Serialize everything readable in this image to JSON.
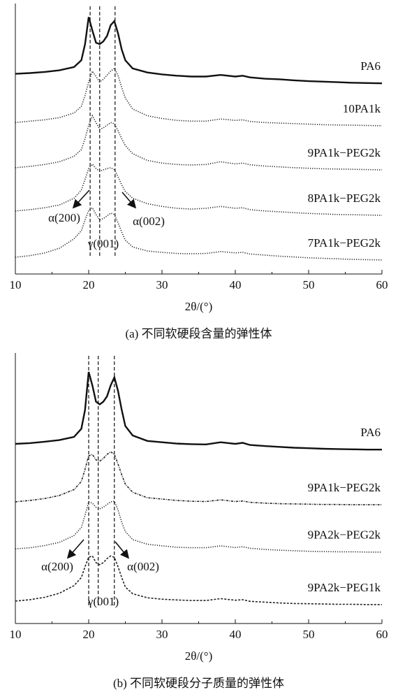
{
  "chart_data": [
    {
      "type": "line",
      "xlabel": "2θ/(°)",
      "caption": "(a)  不同软硬段含量的弹性体",
      "x": [
        10,
        12,
        14,
        16,
        18,
        19,
        19.5,
        20,
        20.5,
        21,
        21.5,
        22,
        22.5,
        23,
        23.5,
        24,
        24.5,
        25,
        26,
        28,
        30,
        32,
        34,
        36,
        38,
        40,
        41,
        42,
        44,
        46,
        48,
        50,
        52,
        54,
        56,
        58,
        60
      ],
      "xlim": [
        10,
        60
      ],
      "xticks": [
        10,
        20,
        30,
        40,
        50,
        60
      ],
      "minor_xticks": [
        15,
        25,
        35,
        45,
        55
      ],
      "ylim": [
        0,
        100
      ],
      "reference_lines": [
        20.2,
        21.5,
        23.6
      ],
      "annotations": [
        "α(200)",
        "α(002)",
        "γ(001)"
      ],
      "series": [
        {
          "name": "PA6",
          "color": "#111111",
          "line_style": "solid",
          "values": [
            74,
            74.3,
            74.7,
            75.3,
            76.5,
            79,
            85,
            95,
            90,
            85.5,
            85,
            86,
            88,
            92,
            93.5,
            89,
            83,
            79,
            76,
            74.5,
            73.8,
            73.3,
            73,
            73,
            73.6,
            73,
            73.3,
            72.7,
            72.2,
            72,
            71.6,
            71.3,
            71.1,
            70.9,
            70.7,
            70.6,
            70.5
          ]
        },
        {
          "name": "10PA1k",
          "color": "#222222",
          "line_style": "dotted",
          "values": [
            56,
            56.5,
            57,
            57.8,
            59.5,
            62,
            66,
            71,
            75,
            73,
            71,
            72,
            73.5,
            75,
            76,
            73.5,
            69,
            65,
            61,
            58.5,
            57.5,
            56.8,
            56.5,
            56.5,
            57.3,
            56.8,
            57,
            56.4,
            56,
            55.8,
            55.6,
            55.4,
            55.2,
            55.1,
            55,
            54.9,
            54.8
          ]
        },
        {
          "name": "9PA1k−PEG2k",
          "color": "#222222",
          "line_style": "dotted",
          "values": [
            39.3,
            39.8,
            40.5,
            41.5,
            43.5,
            46,
            50,
            55,
            58.5,
            56,
            53.5,
            54,
            55,
            56,
            55.5,
            53,
            50,
            47.5,
            44.5,
            42,
            41,
            40.5,
            40.3,
            40.5,
            41.5,
            40.7,
            41,
            40.4,
            39.9,
            39.6,
            39.3,
            39.1,
            38.9,
            38.8,
            38.7,
            38.6,
            38.5
          ]
        },
        {
          "name": "8PA1k−PEG2k",
          "color": "#222222",
          "line_style": "dotted",
          "values": [
            23.3,
            23.8,
            24.5,
            25.5,
            28,
            31,
            35,
            39,
            40.6,
            39,
            38,
            38.5,
            39,
            39.3,
            38.5,
            36,
            33,
            30.5,
            28,
            26,
            25,
            24.3,
            24,
            24.3,
            25,
            24.3,
            24.5,
            23.8,
            23.3,
            23,
            22.7,
            22.4,
            22.2,
            22,
            21.9,
            21.8,
            21.7
          ]
        },
        {
          "name": "7PA1k−PEG2k",
          "color": "#222222",
          "line_style": "dotted",
          "values": [
            6.2,
            6.8,
            7.8,
            9.5,
            13,
            16,
            20,
            23.5,
            24.5,
            22,
            20,
            20.5,
            21.5,
            22.5,
            22,
            19,
            15.5,
            12.5,
            10,
            8.5,
            8,
            7.6,
            7.5,
            7.6,
            8.3,
            7.8,
            8,
            7.4,
            7,
            6.6,
            6.3,
            6,
            5.8,
            5.6,
            5.4,
            5.3,
            5.2
          ]
        }
      ]
    },
    {
      "type": "line",
      "xlabel": "2θ/(°)",
      "caption": "(b)  不同软硬段分子质量的弹性体",
      "x": [
        10,
        12,
        14,
        16,
        18,
        19,
        19.5,
        20,
        20.5,
        21,
        21.5,
        22,
        22.5,
        23,
        23.5,
        24,
        24.5,
        25,
        26,
        28,
        30,
        32,
        34,
        36,
        38,
        40,
        41,
        42,
        44,
        46,
        48,
        50,
        52,
        54,
        56,
        58,
        60
      ],
      "xlim": [
        10,
        60
      ],
      "xticks": [
        10,
        20,
        30,
        40,
        50,
        60
      ],
      "minor_xticks": [
        15,
        25,
        35,
        45,
        55
      ],
      "ylim": [
        0,
        100
      ],
      "reference_lines": [
        20,
        21.3,
        23.5
      ],
      "annotations": [
        "α(200)",
        "α(002)",
        "γ(001)"
      ],
      "series": [
        {
          "name": "PA6",
          "color": "#111111",
          "line_style": "solid",
          "values": [
            66.4,
            66.7,
            67.2,
            67.8,
            69,
            72,
            79,
            93,
            88,
            82,
            81,
            82,
            84,
            88,
            91,
            86,
            79,
            73,
            69.5,
            67.5,
            67,
            66.5,
            66.3,
            66.2,
            67,
            66.4,
            66.8,
            66,
            65.6,
            65.3,
            65,
            64.8,
            64.6,
            64.5,
            64.4,
            64.3,
            64.3
          ]
        },
        {
          "name": "9PA1k−PEG2k",
          "color": "#222222",
          "line_style": "dashdot",
          "values": [
            45,
            45.5,
            46.2,
            47.3,
            49.5,
            52.5,
            57,
            62,
            62.5,
            60.5,
            60,
            61,
            62.5,
            63.5,
            62.5,
            59,
            55,
            51.5,
            48.5,
            46.5,
            46,
            45.5,
            45.2,
            45.1,
            45.7,
            45.1,
            45.3,
            44.8,
            44.5,
            44.3,
            44.2,
            44.1,
            44,
            44,
            43.9,
            43.9,
            43.9
          ]
        },
        {
          "name": "9PA2k−PEG2k",
          "color": "#222222",
          "line_style": "dotted",
          "values": [
            27.6,
            28,
            28.8,
            30,
            32.5,
            35.5,
            40,
            45,
            44.5,
            43,
            42.4,
            43,
            44,
            45,
            45.2,
            42,
            37.5,
            34,
            31,
            29.3,
            28.7,
            28.2,
            28,
            28,
            28.7,
            28.1,
            28.4,
            27.8,
            27.4,
            27.1,
            26.9,
            26.7,
            26.6,
            26.5,
            26.5,
            26.4,
            26.4
          ]
        },
        {
          "name": "9PA2k−PEG1k",
          "color": "#222222",
          "line_style": "dashed",
          "values": [
            8.3,
            8.8,
            9.7,
            11.2,
            14,
            17,
            21,
            24.5,
            25,
            22.5,
            21.7,
            22.5,
            24,
            25,
            24.5,
            21,
            17,
            13.5,
            11,
            9.5,
            9,
            8.7,
            8.5,
            8.5,
            9.2,
            8.6,
            8.8,
            8.2,
            7.9,
            7.6,
            7.4,
            7.3,
            7.2,
            7.1,
            7.1,
            7,
            7
          ]
        }
      ]
    }
  ]
}
